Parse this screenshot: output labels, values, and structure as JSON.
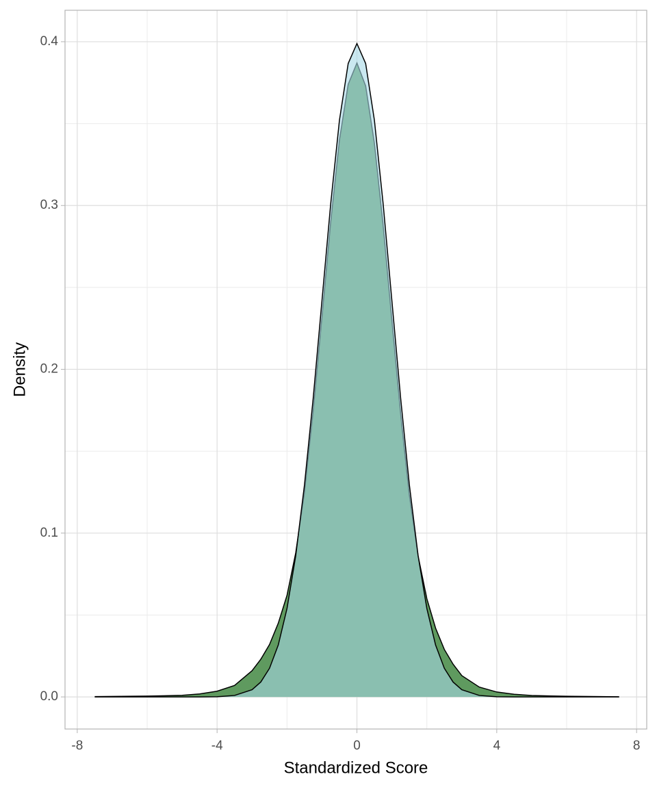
{
  "chart_data": {
    "type": "density",
    "xlabel": "Standardized Score",
    "ylabel": "Density",
    "x": [
      -7.5,
      -7,
      -6.5,
      -6,
      -5.5,
      -5,
      -4.5,
      -4,
      -3.5,
      -3,
      -2.75,
      -2.5,
      -2.25,
      -2,
      -1.75,
      -1.5,
      -1.25,
      -1,
      -0.75,
      -0.5,
      -0.25,
      0,
      0.25,
      0.5,
      0.75,
      1,
      1.25,
      1.5,
      1.75,
      2,
      2.25,
      2.5,
      2.75,
      3,
      3.5,
      4,
      4.5,
      5,
      5.5,
      6,
      6.5,
      7,
      7.5
    ],
    "series": [
      {
        "color": "#5f9a5f",
        "values": [
          0.0002,
          0.0003,
          0.0004,
          0.0005,
          0.0007,
          0.001,
          0.0018,
          0.0035,
          0.007,
          0.016,
          0.023,
          0.032,
          0.045,
          0.062,
          0.088,
          0.125,
          0.175,
          0.232,
          0.29,
          0.34,
          0.374,
          0.387,
          0.373,
          0.338,
          0.288,
          0.23,
          0.173,
          0.123,
          0.086,
          0.06,
          0.042,
          0.029,
          0.02,
          0.013,
          0.006,
          0.003,
          0.0016,
          0.0009,
          0.0006,
          0.0004,
          0.0003,
          0.0002,
          0.0001
        ]
      },
      {
        "color": "#a6d9e6",
        "values": [
          0,
          0,
          0,
          0,
          0,
          0,
          0,
          0.0001,
          0.0009,
          0.0044,
          0.0091,
          0.0175,
          0.0317,
          0.054,
          0.0863,
          0.1295,
          0.1826,
          0.242,
          0.3011,
          0.3521,
          0.3867,
          0.3989,
          0.3867,
          0.3521,
          0.3011,
          0.242,
          0.1826,
          0.1295,
          0.0863,
          0.054,
          0.0317,
          0.0175,
          0.0091,
          0.0044,
          0.0009,
          0.0001,
          0,
          0,
          0,
          0,
          0,
          0,
          0
        ]
      }
    ],
    "xlim": [
      -8.35,
      8.29
    ],
    "ylim": [
      -0.0196,
      0.4192
    ],
    "xticks": [
      -8,
      -4,
      0,
      4,
      8
    ],
    "yticks": [
      {
        "value": 0,
        "label": "0.0"
      },
      0.1,
      0.2,
      0.3,
      0.4
    ],
    "xminor": [
      -6,
      -2,
      2,
      6
    ],
    "yminor": [
      0.05,
      0.15,
      0.25,
      0.35
    ],
    "grid": true
  }
}
